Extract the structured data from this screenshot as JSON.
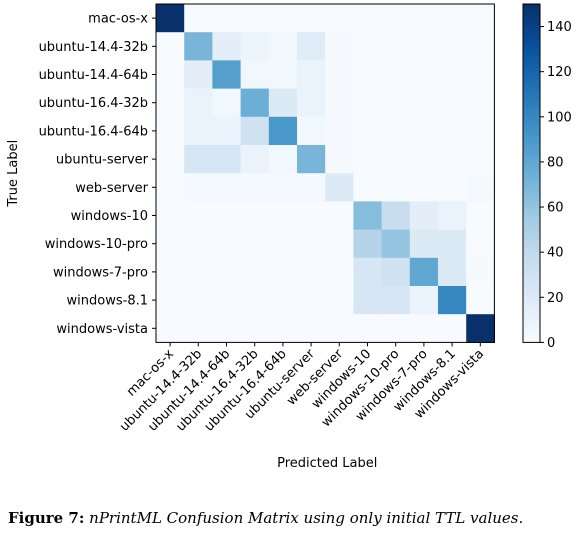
{
  "caption": {
    "figure_label": "Figure 7:",
    "text": "nPrintML Confusion Matrix using only initial TTL values."
  },
  "chart_data": {
    "type": "heatmap",
    "title": "",
    "xlabel": "Predicted Label",
    "ylabel": "True Label",
    "labels": [
      "mac-os-x",
      "ubuntu-14.4-32b",
      "ubuntu-14.4-64b",
      "ubuntu-16.4-32b",
      "ubuntu-16.4-64b",
      "ubuntu-server",
      "web-server",
      "windows-10",
      "windows-10-pro",
      "windows-7-pro",
      "windows-8.1",
      "windows-vista"
    ],
    "matrix": [
      [
        150,
        0,
        0,
        0,
        0,
        0,
        0,
        0,
        0,
        0,
        0,
        0
      ],
      [
        0,
        70,
        15,
        8,
        5,
        18,
        1,
        0,
        0,
        0,
        0,
        0
      ],
      [
        0,
        15,
        85,
        5,
        5,
        10,
        1,
        0,
        0,
        0,
        0,
        0
      ],
      [
        0,
        10,
        5,
        75,
        20,
        10,
        1,
        0,
        0,
        0,
        0,
        0
      ],
      [
        0,
        10,
        10,
        30,
        90,
        5,
        1,
        0,
        0,
        0,
        0,
        0
      ],
      [
        0,
        25,
        25,
        10,
        5,
        70,
        1,
        0,
        0,
        0,
        0,
        0
      ],
      [
        0,
        2,
        2,
        2,
        2,
        2,
        20,
        0,
        0,
        0,
        0,
        2
      ],
      [
        0,
        0,
        0,
        0,
        0,
        0,
        0,
        65,
        35,
        15,
        10,
        0
      ],
      [
        0,
        0,
        0,
        0,
        0,
        0,
        0,
        45,
        60,
        20,
        20,
        0
      ],
      [
        0,
        0,
        0,
        0,
        0,
        0,
        0,
        25,
        30,
        80,
        20,
        1
      ],
      [
        0,
        0,
        0,
        0,
        0,
        0,
        0,
        25,
        25,
        10,
        100,
        0
      ],
      [
        0,
        0,
        0,
        0,
        0,
        0,
        0,
        0,
        0,
        0,
        0,
        150
      ]
    ],
    "colorbar": {
      "ticks": [
        0,
        20,
        40,
        60,
        80,
        100,
        120,
        140
      ],
      "range": [
        0,
        150
      ]
    },
    "colormap": [
      "#f7fbff",
      "#deebf7",
      "#c6dbef",
      "#9ecae1",
      "#6baed6",
      "#4292c6",
      "#2171b5",
      "#08519c",
      "#08306b"
    ]
  }
}
